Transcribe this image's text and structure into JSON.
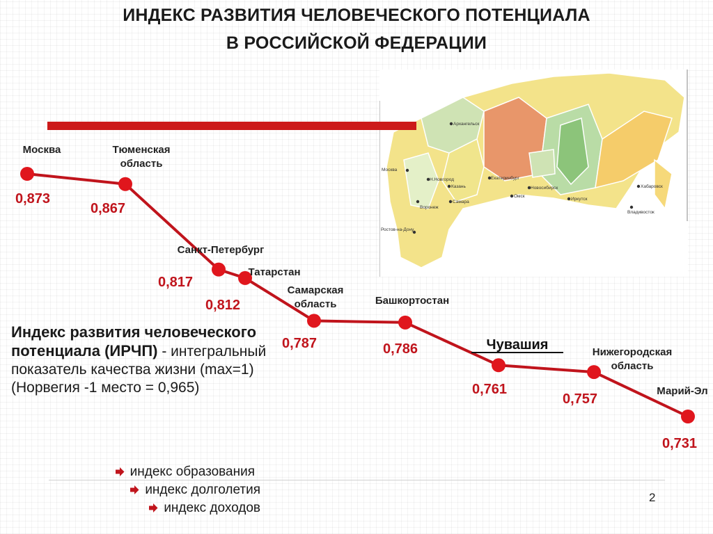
{
  "title_line1": "ИНДЕКС РАЗВИТИЯ ЧЕЛОВЕЧЕСКОГО ПОТЕНЦИАЛА",
  "title_line2": "В РОССИЙСКОЙ ФЕДЕРАЦИИ",
  "colors": {
    "accent": "#c0141c",
    "bar": "#cc1a1a",
    "text": "#1a1a1a"
  },
  "map": {
    "city_labels": [
      "Архангельск",
      "Москва",
      "Н.Новгород",
      "Казань",
      "Екатеринбург",
      "Новосибирск",
      "Самара",
      "Омск",
      "Иркутск",
      "Хабаровск",
      "Воронеж",
      "Владивосток",
      "Ростов-на-Дону"
    ]
  },
  "chart_data": {
    "type": "line",
    "categories": [
      "Москва",
      "Тюменская область",
      "Санкт-Петербург",
      "Татарстан",
      "Самарская область",
      "Башкортостан",
      "Чувашия",
      "Нижегородская область",
      "Марий-Эл"
    ],
    "values": [
      0.873,
      0.867,
      0.817,
      0.812,
      0.787,
      0.786,
      0.761,
      0.757,
      0.731
    ],
    "value_labels": [
      "0,873",
      "0,867",
      "0,817",
      "0,812",
      "0,787",
      "0,786",
      "0,761",
      "0,757",
      "0,731"
    ],
    "emphasized_category": "Чувашия",
    "ylim": [
      0.731,
      0.873
    ],
    "grid": false,
    "legend": "none"
  },
  "definition": {
    "bold_term": "Индекс развития человеческого потенциала (ИРЧП)",
    "dash": " -",
    "text": "интегральный показатель качества жизни (max=1) (Норвегия -1 место = 0,965)"
  },
  "components": [
    "индекс образования",
    "индекс долголетия",
    "индекс доходов"
  ],
  "page_number": "2"
}
